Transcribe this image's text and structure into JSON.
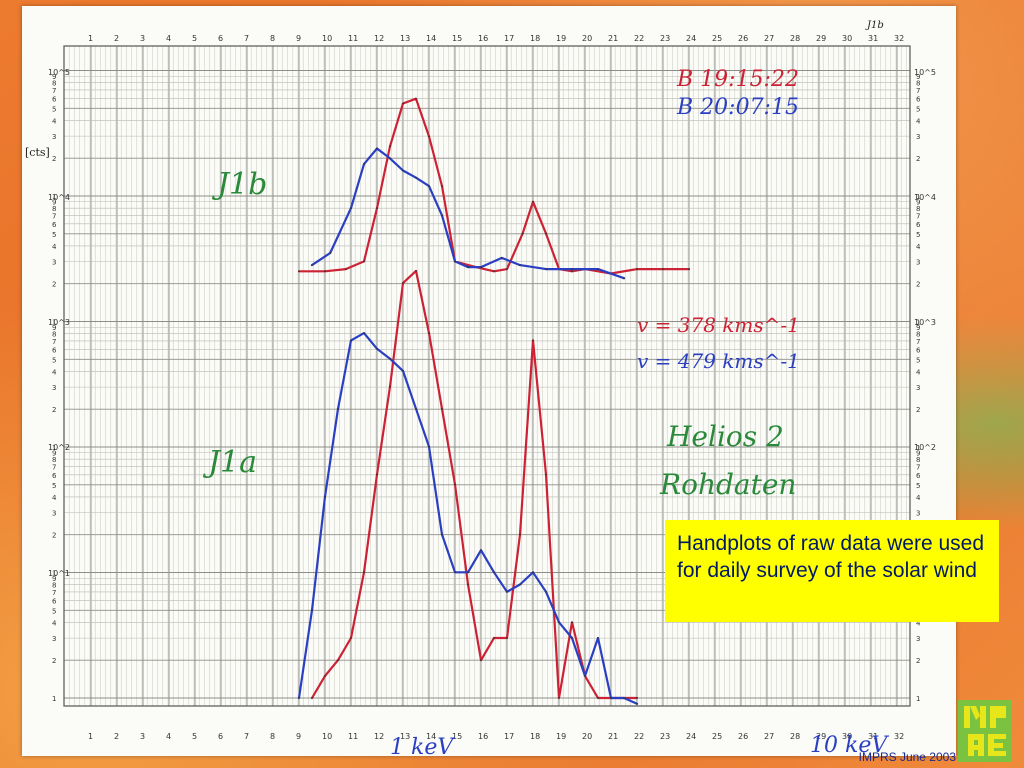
{
  "caption": {
    "text": "Handplots of raw data were used for daily survey of the solar wind"
  },
  "footer": {
    "text": "IMPRS June 2003"
  },
  "logo": {
    "alt": "MPAe"
  },
  "chart_data": [
    {
      "type": "line",
      "panel_label": "J1b",
      "corner_label": "J1b",
      "y_unit_label": "[cts]",
      "y_scale": "log",
      "y_decade_labels": [
        "10^3",
        "10^4",
        "10^5"
      ],
      "x_tick_labels": [
        "1",
        "2",
        "3",
        "4",
        "5",
        "6",
        "7",
        "8",
        "9",
        "10",
        "11",
        "12",
        "13",
        "14",
        "15",
        "16",
        "17",
        "18",
        "19",
        "20",
        "21",
        "22",
        "23",
        "24",
        "25",
        "26",
        "27",
        "28",
        "29",
        "30",
        "31",
        "32"
      ],
      "series": [
        {
          "name": "B 19:15:22",
          "color": "#cc2233",
          "x": [
            9,
            10,
            10.8,
            11.5,
            12,
            12.5,
            13,
            13.5,
            14,
            14.5,
            15,
            15.8,
            16.5,
            17,
            17.6,
            18,
            18.5,
            19,
            19.5,
            20,
            21,
            22,
            23,
            24
          ],
          "y": [
            2500,
            2500,
            2600,
            3000,
            8000,
            25000,
            55000,
            60000,
            30000,
            12000,
            3000,
            2700,
            2500,
            2600,
            5000,
            9000,
            5000,
            2600,
            2500,
            2600,
            2400,
            2600,
            2600,
            2600
          ]
        },
        {
          "name": "B 20:07:15",
          "color": "#2a3fc2",
          "x": [
            9.5,
            10.2,
            11,
            11.5,
            12,
            12.5,
            13,
            13.5,
            14,
            14.5,
            15,
            15.5,
            16,
            16.8,
            17.5,
            18.5,
            19.5,
            20.5,
            21.5
          ],
          "y": [
            2800,
            3500,
            8000,
            18000,
            24000,
            20000,
            16000,
            14000,
            12000,
            7000,
            3000,
            2700,
            2700,
            3200,
            2800,
            2600,
            2600,
            2600,
            2200
          ]
        }
      ]
    },
    {
      "type": "line",
      "panel_label": "J1a",
      "y_scale": "log",
      "y_decade_labels": [
        "10^0",
        "10^1",
        "10^2",
        "10^3"
      ],
      "x_tick_labels": [
        "1",
        "2",
        "3",
        "4",
        "5",
        "6",
        "7",
        "8",
        "9",
        "10",
        "11",
        "12",
        "13",
        "14",
        "15",
        "16",
        "17",
        "18",
        "19",
        "20",
        "21",
        "22",
        "23",
        "24",
        "25",
        "26",
        "27",
        "28",
        "29",
        "30",
        "31",
        "32"
      ],
      "x_annotations": [
        "1 keV",
        "10 keV"
      ],
      "speed_annotations": [
        "v = 378 kms^-1",
        "v = 479 kms^-1"
      ],
      "title_annotation": [
        "Helios 2",
        "Rohdaten"
      ],
      "series": [
        {
          "name": "v = 378 kms^-1",
          "color": "#cc2233",
          "x": [
            9.5,
            10,
            10.5,
            11,
            11.5,
            12,
            12.5,
            13,
            13.5,
            14,
            14.5,
            15,
            15.5,
            16,
            16.5,
            17,
            17.5,
            18,
            18.5,
            19,
            19.5,
            20,
            20.5,
            21,
            22
          ],
          "y": [
            1,
            1.5,
            2,
            3,
            10,
            60,
            300,
            2000,
            2500,
            800,
            200,
            50,
            8,
            2,
            3,
            3,
            20,
            700,
            60,
            1,
            4,
            1.5,
            1,
            1,
            1
          ]
        },
        {
          "name": "v = 479 kms^-1",
          "color": "#2a3fc2",
          "x": [
            9,
            9.5,
            10,
            10.5,
            11,
            11.5,
            12,
            12.5,
            13,
            13.5,
            14,
            14.5,
            15,
            15.5,
            16,
            16.5,
            17,
            17.5,
            18,
            18.5,
            19,
            19.5,
            20,
            20.5,
            21,
            21.5,
            22
          ],
          "y": [
            1,
            5,
            40,
            200,
            700,
            800,
            600,
            500,
            400,
            200,
            100,
            20,
            10,
            10,
            15,
            10,
            7,
            8,
            10,
            7,
            4,
            3,
            1.5,
            3,
            1,
            1,
            0.9
          ]
        }
      ]
    }
  ]
}
